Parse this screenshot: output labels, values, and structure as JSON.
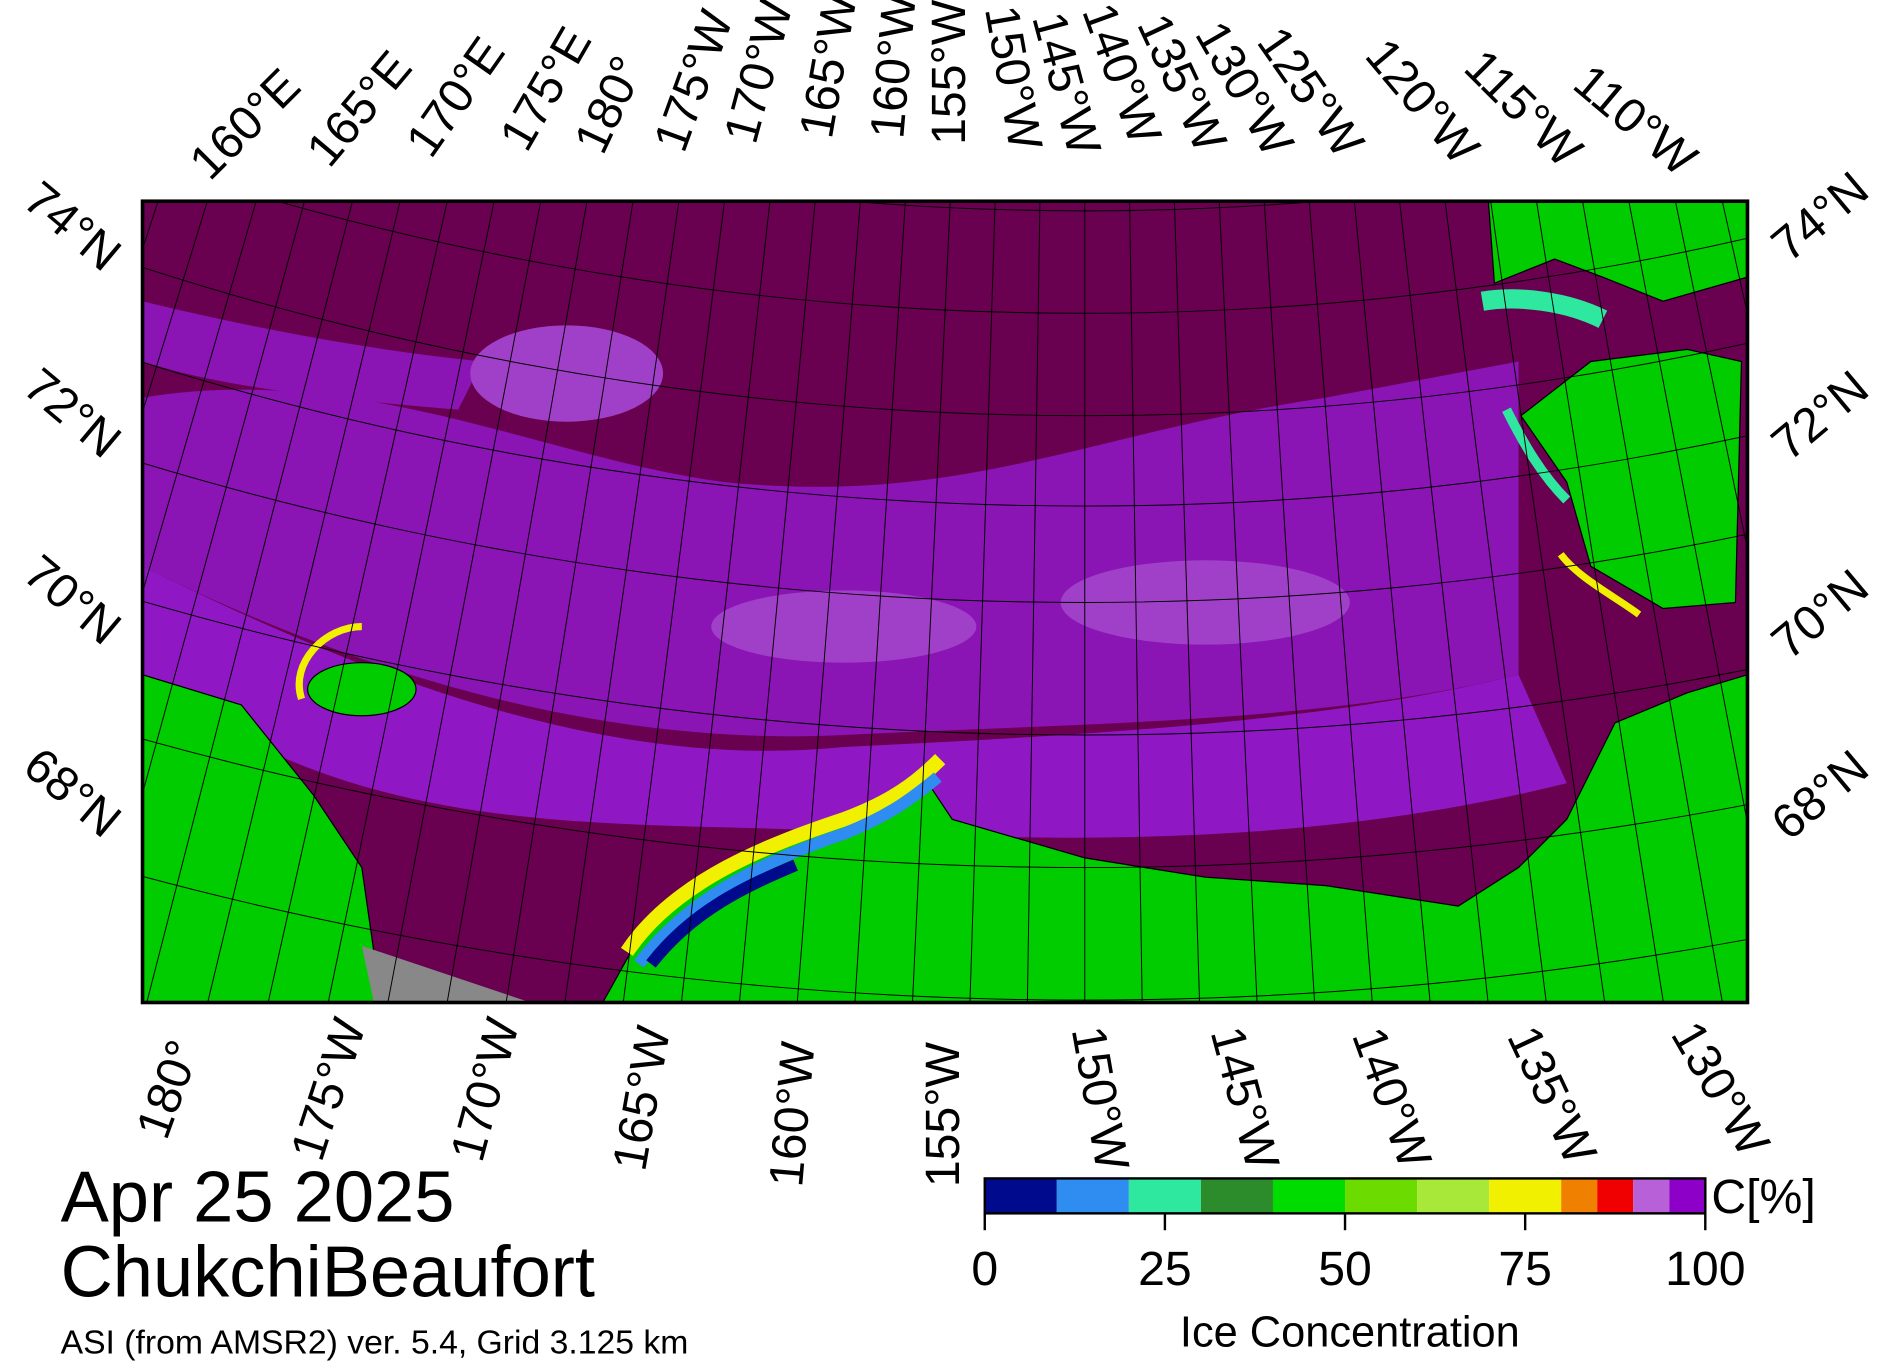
{
  "title": {
    "date": "Apr 25 2025",
    "region": "ChukchiBeaufort",
    "source": "ASI (from AMSR2) ver. 5.4,  Grid 3.125 km"
  },
  "map": {
    "top_labels": [
      "160°E",
      "165°E",
      "170°E",
      "175°E",
      "180°",
      "175°W",
      "170°W",
      "165°W",
      "160°W",
      "155°W",
      "150°W",
      "145°W",
      "140°W",
      "135°W",
      "130°W",
      "125°W",
      "120°W",
      "115°W",
      "110°W"
    ],
    "bottom_labels": [
      "180°",
      "175°W",
      "170°W",
      "165°W",
      "160°W",
      "155°W",
      "150°W",
      "145°W",
      "140°W",
      "135°W",
      "130°W"
    ],
    "left_labels": [
      "74°N",
      "72°N",
      "70°N",
      "68°N"
    ],
    "right_labels": [
      "74°N",
      "72°N",
      "70°N",
      "68°N"
    ]
  },
  "colorbar": {
    "title": "Ice Concentration",
    "unit": "C[%]",
    "lim": [
      0,
      100
    ],
    "ticks": [
      0,
      25,
      50,
      75,
      100
    ],
    "bounds": [
      0,
      10,
      20,
      30,
      40,
      50,
      60,
      70,
      80,
      85,
      90,
      95,
      100
    ],
    "colors": [
      "#000a8c",
      "#2f8cf0",
      "#2ee8a0",
      "#2c8c2c",
      "#00dc00",
      "#6cdc00",
      "#a8e838",
      "#f0f000",
      "#f08000",
      "#f00000",
      "#b860d8",
      "#8c00c8"
    ]
  }
}
